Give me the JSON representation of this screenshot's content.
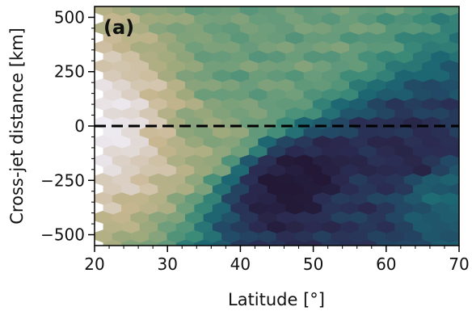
{
  "chart_data": {
    "type": "heatmap",
    "panel_label": "(a)",
    "xlabel": "Latitude [°]",
    "ylabel": "Cross-jet distance [km]",
    "xlim": [
      20,
      70
    ],
    "ylim": [
      -550,
      550
    ],
    "xticks": [
      20,
      30,
      40,
      50,
      60,
      70
    ],
    "yticks": [
      500,
      250,
      0,
      -250,
      -500
    ],
    "ytick_labels": [
      "500",
      "250",
      "0",
      "−250",
      "−500"
    ],
    "hex_bins": {
      "x_step": 2.5,
      "y_step": 43.5
    },
    "density_scale": [
      0,
      1
    ],
    "reference_line": {
      "y": 0,
      "style": "dashed",
      "color": "#000000"
    },
    "colormap": [
      "#eeebf3",
      "#ddd3cb",
      "#c8b791",
      "#9fa97c",
      "#6f9e7b",
      "#3b8a78",
      "#1d6873",
      "#224a66",
      "#2b2c52",
      "#231936"
    ],
    "density_anchors": [
      {
        "lat": 21,
        "dist": 0,
        "density": 0.0
      },
      {
        "lat": 25,
        "dist": 0,
        "density": 0.05
      },
      {
        "lat": 29,
        "dist": 0,
        "density": 0.2
      },
      {
        "lat": 33,
        "dist": 0,
        "density": 0.38
      },
      {
        "lat": 45,
        "dist": 400,
        "density": 0.45
      },
      {
        "lat": 49,
        "dist": -270,
        "density": 1.0
      },
      {
        "lat": 63,
        "dist": -160,
        "density": 0.9
      },
      {
        "lat": 55,
        "dist": -350,
        "density": 0.85
      },
      {
        "lat": 68,
        "dist": -300,
        "density": 0.7
      },
      {
        "lat": 40,
        "dist": 200,
        "density": 0.45
      }
    ]
  }
}
